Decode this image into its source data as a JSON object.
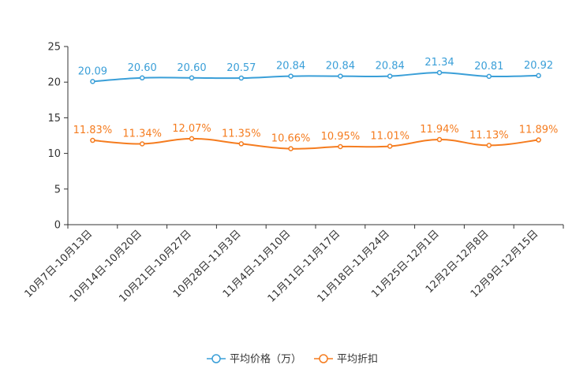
{
  "chart_data": {
    "type": "line",
    "title": "",
    "xlabel": "",
    "ylabel": "",
    "ylim": [
      0,
      25
    ],
    "yticks": [
      0,
      5,
      10,
      15,
      20,
      25
    ],
    "grid": false,
    "legend_position": "bottom-center",
    "categories": [
      "10月7日-10月13日",
      "10月14日-10月20日",
      "10月21日-10月27日",
      "10月28日-11月3日",
      "11月4日-11月10日",
      "11月11日-11月17日",
      "11月18日-11月24日",
      "11月25日-12月1日",
      "12月2日-12月8日",
      "12月9日-12月15日"
    ],
    "series": [
      {
        "name": "平均价格（万）",
        "color": "#3a9fd8",
        "values": [
          20.09,
          20.6,
          20.6,
          20.57,
          20.84,
          20.84,
          20.84,
          21.34,
          20.81,
          20.92
        ],
        "labels": [
          "20.09",
          "20.60",
          "20.60",
          "20.57",
          "20.84",
          "20.84",
          "20.84",
          "21.34",
          "20.81",
          "20.92"
        ]
      },
      {
        "name": "平均折扣",
        "color": "#f57c1f",
        "values": [
          11.83,
          11.34,
          12.07,
          11.35,
          10.66,
          10.95,
          11.01,
          11.94,
          11.13,
          11.89
        ],
        "labels": [
          "11.83%",
          "11.34%",
          "12.07%",
          "11.35%",
          "10.66%",
          "10.95%",
          "11.01%",
          "11.94%",
          "11.13%",
          "11.89%"
        ]
      }
    ]
  }
}
